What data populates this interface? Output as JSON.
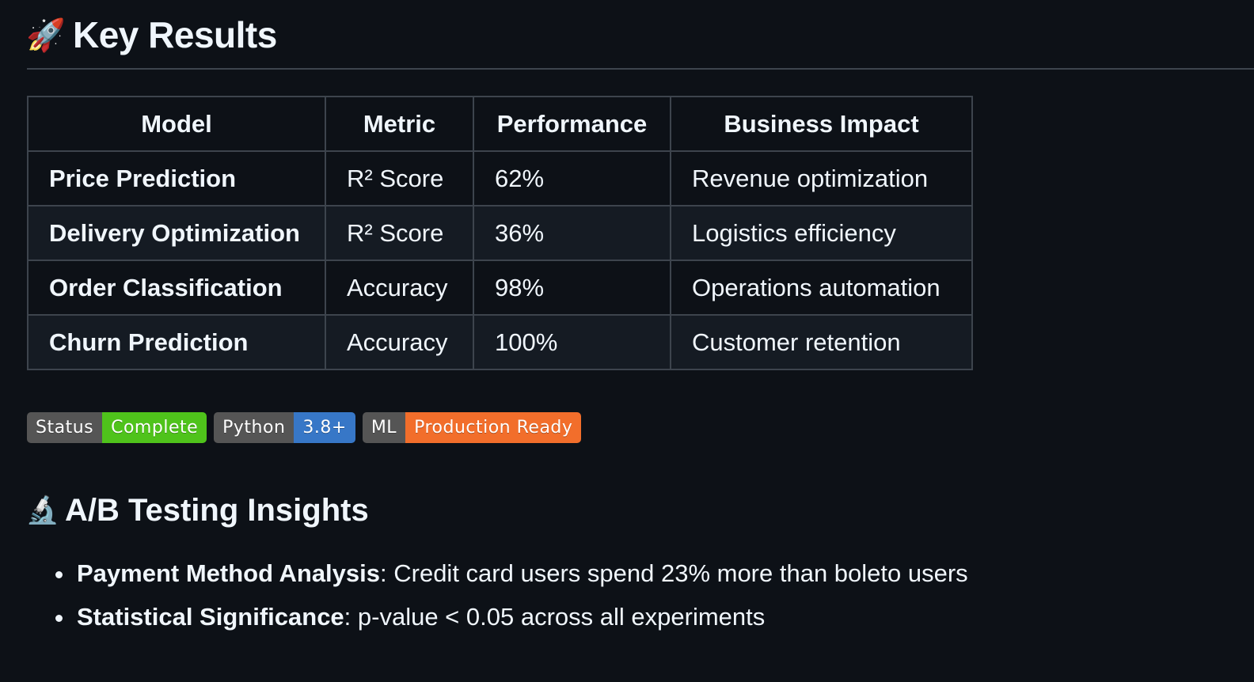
{
  "key_results": {
    "emoji": "🚀",
    "title": "Key Results"
  },
  "table": {
    "headers": [
      "Model",
      "Metric",
      "Performance",
      "Business Impact"
    ],
    "rows": [
      {
        "model": "Price Prediction",
        "metric": "R² Score",
        "performance": "62%",
        "impact": "Revenue optimization"
      },
      {
        "model": "Delivery Optimization",
        "metric": "R² Score",
        "performance": "36%",
        "impact": "Logistics efficiency"
      },
      {
        "model": "Order Classification",
        "metric": "Accuracy",
        "performance": "98%",
        "impact": "Operations automation"
      },
      {
        "model": "Churn Prediction",
        "metric": "Accuracy",
        "performance": "100%",
        "impact": "Customer retention"
      }
    ]
  },
  "badges": [
    {
      "label": "Status",
      "value": "Complete",
      "color": "#4fc31b"
    },
    {
      "label": "Python",
      "value": "3.8+",
      "color": "#3777c7"
    },
    {
      "label": "ML",
      "value": "Production Ready",
      "color": "#f26e2b"
    }
  ],
  "ab_testing": {
    "emoji": "🔬",
    "title": "A/B Testing Insights",
    "items": [
      {
        "label": "Payment Method Analysis",
        "text": ": Credit card users spend 23% more than boleto users"
      },
      {
        "label": "Statistical Significance",
        "text": ": p-value < 0.05 across all experiments"
      }
    ]
  },
  "colors": {
    "background": "#0d1117",
    "text": "#f0f6fc",
    "border": "#3d444d",
    "row_alt": "#151b23"
  }
}
